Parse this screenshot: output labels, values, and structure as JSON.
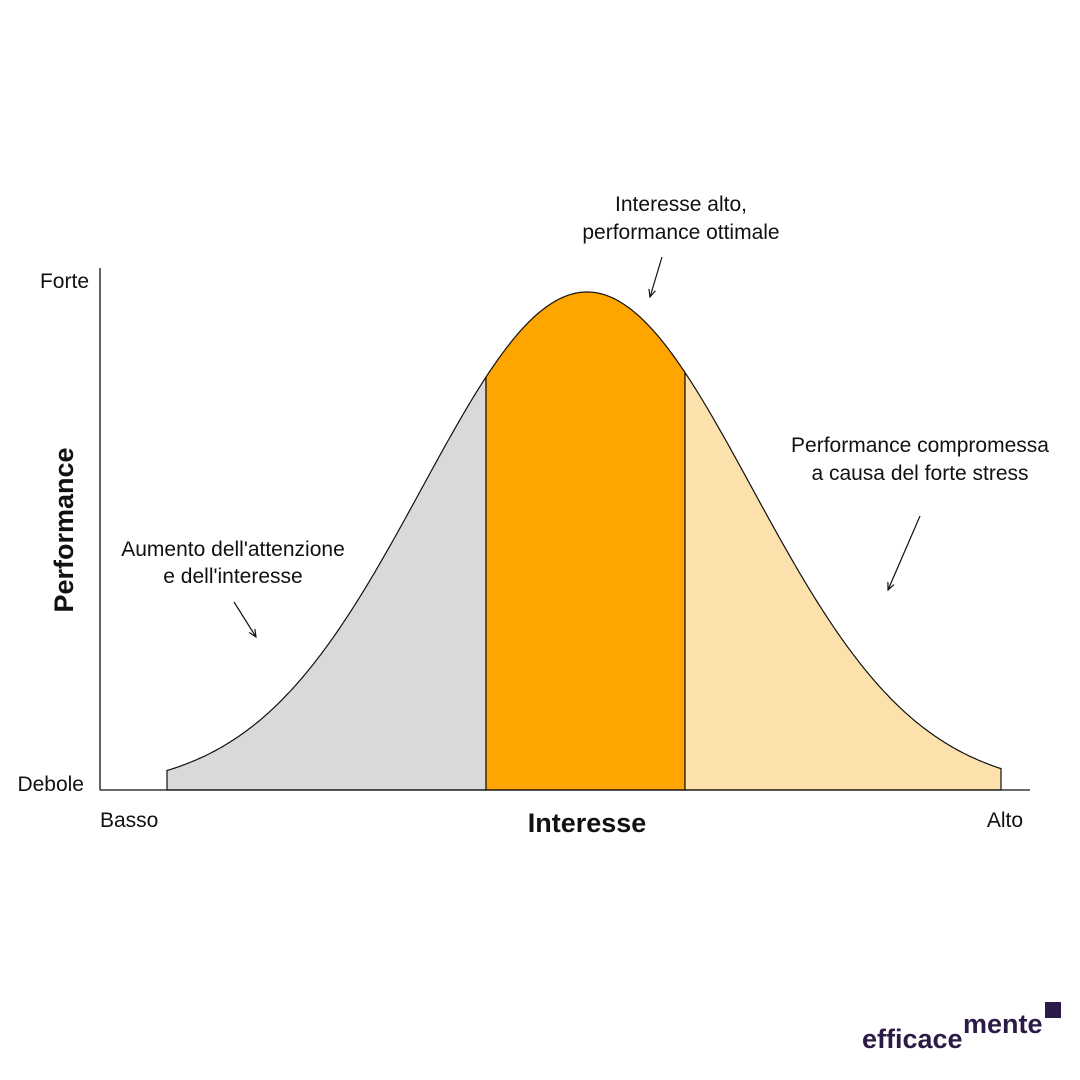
{
  "axes": {
    "y_title": "Performance",
    "y_top": "Forte",
    "y_bottom": "Debole",
    "x_title": "Interesse",
    "x_left": "Basso",
    "x_right": "Alto"
  },
  "annotations": [
    {
      "lines": [
        "Interesse alto,",
        "performance ottimale"
      ]
    },
    {
      "lines": [
        "Aumento dell'attenzione",
        "e dell'interesse"
      ]
    },
    {
      "lines": [
        "Performance compromessa",
        "a causa del forte stress"
      ]
    }
  ],
  "logo": {
    "first": "efficace",
    "second": "mente"
  }
}
